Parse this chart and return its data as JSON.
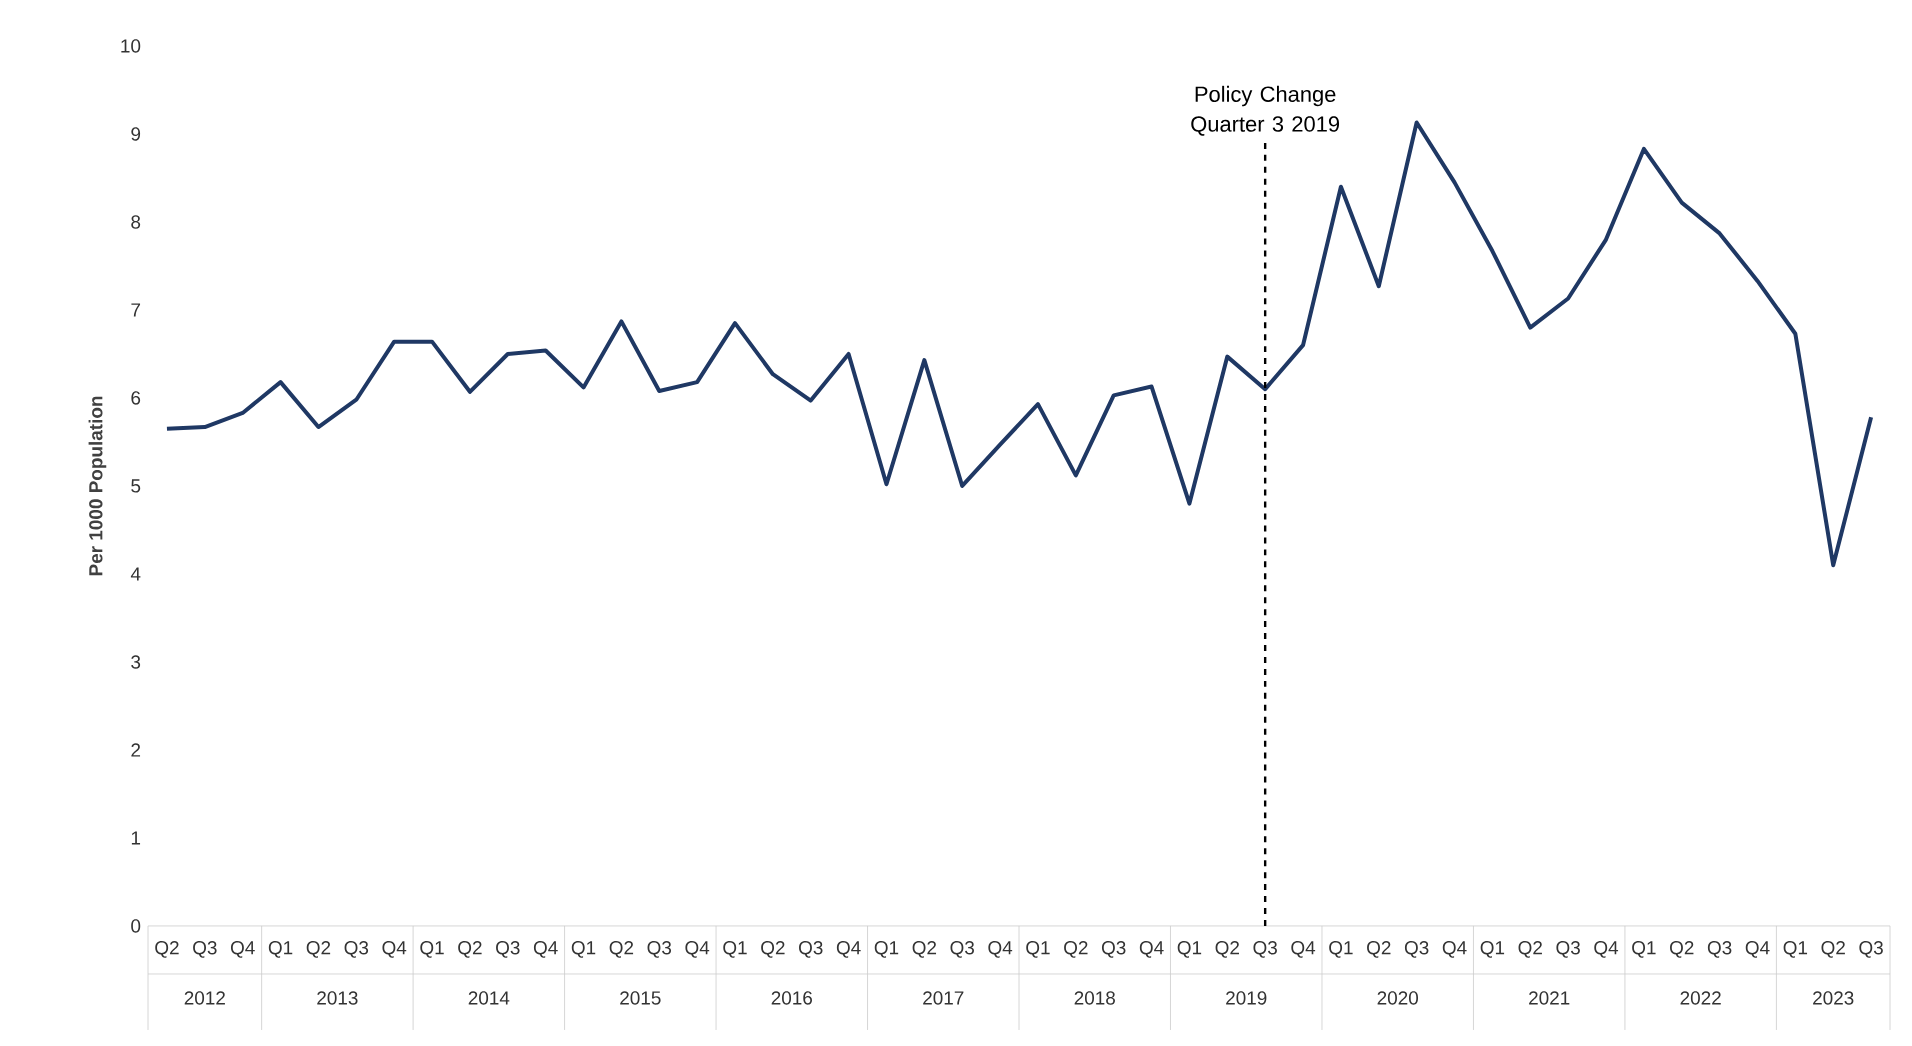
{
  "chart_data": {
    "type": "line",
    "ylabel": "Per 1000 Population",
    "categories": [
      "Q2",
      "Q3",
      "Q4",
      "Q1",
      "Q2",
      "Q3",
      "Q4",
      "Q1",
      "Q2",
      "Q3",
      "Q4",
      "Q1",
      "Q2",
      "Q3",
      "Q4",
      "Q1",
      "Q2",
      "Q3",
      "Q4",
      "Q1",
      "Q2",
      "Q3",
      "Q4",
      "Q1",
      "Q2",
      "Q3",
      "Q4",
      "Q1",
      "Q2",
      "Q3",
      "Q4",
      "Q1",
      "Q2",
      "Q3",
      "Q4",
      "Q1",
      "Q2",
      "Q3",
      "Q4",
      "Q1",
      "Q2",
      "Q3",
      "Q4",
      "Q1",
      "Q2",
      "Q3"
    ],
    "series": [
      {
        "color": "#1f3864",
        "values": [
          5.65,
          5.67,
          5.83,
          6.18,
          5.67,
          5.98,
          6.64,
          6.64,
          6.07,
          6.5,
          6.54,
          6.12,
          6.87,
          6.08,
          6.18,
          6.85,
          6.27,
          5.97,
          6.5,
          5.02,
          6.43,
          5.0,
          5.47,
          5.93,
          5.12,
          6.03,
          6.13,
          4.8,
          6.47,
          6.1,
          6.6,
          8.4,
          7.27,
          9.13,
          8.45,
          7.67,
          6.8,
          7.13,
          7.8,
          8.83,
          8.22,
          7.87,
          7.33,
          6.73,
          4.1,
          5.78
        ]
      }
    ],
    "ylim": [
      0,
      10
    ],
    "yticks": [
      0,
      1,
      2,
      3,
      4,
      5,
      6,
      7,
      8,
      9,
      10
    ],
    "annotations": [
      {
        "text": "Policy Change Quarter 3 2019"
      },
      "2012",
      "2013",
      "2014",
      "2015",
      "2016",
      "2017",
      "2018",
      "2019",
      "2020",
      "2021",
      "2022",
      "2023"
    ],
    "marker": "none",
    "line_style": "solid"
  }
}
